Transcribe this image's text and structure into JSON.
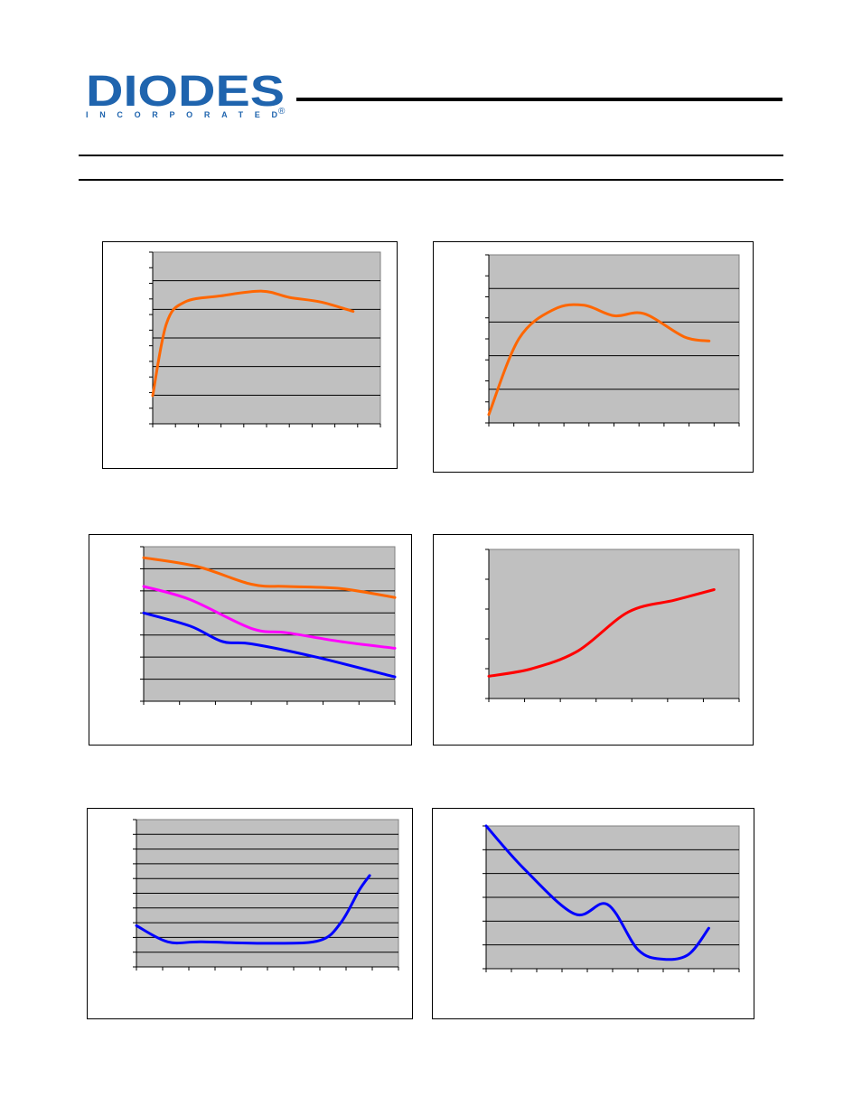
{
  "header": {
    "logo_text": "DIODES",
    "logo_subtext": "INCORPORATED",
    "logo_mark": "®"
  },
  "colors": {
    "plot_bg": "#c0c0c0",
    "logo_blue": "#1f64ae",
    "orange": "#ff6600",
    "magenta": "#ff00ff",
    "blue": "#0000ff",
    "red": "#ff0000"
  },
  "chart_data": [
    {
      "type": "line",
      "xlim": [
        0,
        10
      ],
      "ylim": [
        0,
        5.5
      ],
      "grid": true,
      "series": [
        {
          "color": "#ff6600",
          "x": [
            0,
            0.6,
            1.4,
            3,
            4.8,
            6,
            7.4,
            8.8
          ],
          "y": [
            0.9,
            3.2,
            3.9,
            4.1,
            4.25,
            4.05,
            3.9,
            3.6
          ]
        }
      ]
    },
    {
      "type": "line",
      "xlim": [
        0,
        10
      ],
      "ylim": [
        0,
        4
      ],
      "grid": true,
      "series": [
        {
          "color": "#ff6600",
          "x": [
            0,
            1.2,
            2.6,
            3.8,
            5,
            6.2,
            7.8,
            8.8
          ],
          "y": [
            0.2,
            2.0,
            2.7,
            2.8,
            2.55,
            2.6,
            2.05,
            1.95
          ]
        }
      ]
    },
    {
      "type": "line",
      "xlim": [
        0,
        7
      ],
      "ylim": [
        0,
        7
      ],
      "grid": true,
      "series": [
        {
          "color": "#ff6600",
          "x": [
            0,
            1.5,
            3,
            4,
            5.5,
            7
          ],
          "y": [
            6.5,
            6.1,
            5.3,
            5.2,
            5.1,
            4.7
          ]
        },
        {
          "color": "#ff00ff",
          "x": [
            0,
            1.3,
            3,
            4,
            5.5,
            7
          ],
          "y": [
            5.2,
            4.6,
            3.3,
            3.1,
            2.7,
            2.4
          ]
        },
        {
          "color": "#0000ff",
          "x": [
            0,
            1.3,
            2.2,
            3,
            4.8,
            7
          ],
          "y": [
            4.0,
            3.4,
            2.7,
            2.6,
            2.0,
            1.1
          ]
        }
      ]
    },
    {
      "type": "line",
      "xlim": [
        0,
        7
      ],
      "ylim": [
        0,
        5
      ],
      "grid": false,
      "series": [
        {
          "color": "#ff0000",
          "x": [
            0,
            1.2,
            2.5,
            3.9,
            5.2,
            6.3
          ],
          "y": [
            0.75,
            1.0,
            1.6,
            2.9,
            3.3,
            3.65
          ]
        }
      ]
    },
    {
      "type": "line",
      "xlim": [
        0,
        10
      ],
      "ylim": [
        0,
        10
      ],
      "grid": true,
      "series": [
        {
          "color": "#0000ff",
          "x": [
            0,
            1.2,
            2.5,
            5.2,
            7,
            7.8,
            8.5,
            8.9
          ],
          "y": [
            2.8,
            1.7,
            1.7,
            1.6,
            1.8,
            3.0,
            5.2,
            6.2
          ]
        }
      ]
    },
    {
      "type": "line",
      "xlim": [
        0,
        10
      ],
      "ylim": [
        0,
        6
      ],
      "grid": true,
      "series": [
        {
          "color": "#0000ff",
          "x": [
            0,
            1.5,
            3.5,
            4.8,
            6.0,
            7.0,
            8.0,
            8.8
          ],
          "y": [
            6.0,
            4.2,
            2.3,
            2.7,
            0.8,
            0.4,
            0.6,
            1.7
          ]
        }
      ]
    }
  ]
}
